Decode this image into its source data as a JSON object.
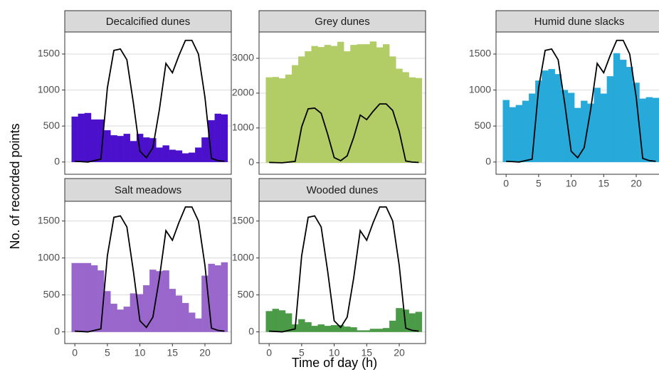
{
  "axis_labels": {
    "x": "Time of day (h)",
    "y": "No. of recorded points"
  },
  "chart_data": [
    {
      "type": "bar",
      "title": "Decalcified dunes",
      "color": "#4a10cc",
      "line_color": "#000000",
      "x": [
        0,
        1,
        2,
        3,
        4,
        5,
        6,
        7,
        8,
        9,
        10,
        11,
        12,
        13,
        14,
        15,
        16,
        17,
        18,
        19,
        20,
        21,
        22,
        23
      ],
      "values": [
        630,
        670,
        680,
        590,
        590,
        440,
        370,
        360,
        390,
        290,
        390,
        340,
        330,
        200,
        230,
        170,
        160,
        120,
        130,
        200,
        340,
        580,
        670,
        660
      ],
      "line_values": [
        10,
        5,
        0,
        20,
        40,
        1030,
        1550,
        1570,
        1420,
        820,
        150,
        60,
        200,
        730,
        1370,
        1240,
        1480,
        1690,
        1690,
        1500,
        900,
        50,
        20,
        10
      ],
      "xlim": [
        -1.55,
        24.05
      ],
      "xticks": [
        0,
        5,
        10,
        15,
        20
      ],
      "ylim": [
        -170,
        1806
      ],
      "yticks": [
        0,
        500,
        1000,
        1500
      ],
      "grid": true,
      "x_axis": false
    },
    {
      "type": "bar",
      "title": "Grey dunes",
      "color": "#b2cc66",
      "line_color": "#000000",
      "x": [
        0,
        1,
        2,
        3,
        4,
        5,
        6,
        7,
        8,
        9,
        10,
        11,
        12,
        13,
        14,
        15,
        16,
        17,
        18,
        19,
        20,
        21,
        22,
        23
      ],
      "values": [
        2450,
        2460,
        2420,
        2530,
        2800,
        3050,
        3200,
        3350,
        3320,
        3380,
        3350,
        3470,
        3200,
        3380,
        3400,
        3400,
        3480,
        3310,
        3400,
        3050,
        2700,
        2600,
        2450,
        2430
      ],
      "line_values": [
        10,
        5,
        0,
        20,
        40,
        1030,
        1550,
        1570,
        1420,
        820,
        150,
        60,
        200,
        730,
        1370,
        1240,
        1480,
        1690,
        1690,
        1500,
        900,
        50,
        20,
        10
      ],
      "xlim": [
        -1.55,
        24.05
      ],
      "xticks": [
        0,
        5,
        10,
        15,
        20
      ],
      "ylim": [
        -330,
        3755
      ],
      "yticks": [
        0,
        1000,
        2000,
        3000
      ],
      "grid": true,
      "x_axis": false
    },
    {
      "type": "bar",
      "title": "Humid dune slacks",
      "color": "#27a9d9",
      "line_color": "#000000",
      "x": [
        0,
        1,
        2,
        3,
        4,
        5,
        6,
        7,
        8,
        9,
        10,
        11,
        12,
        13,
        14,
        15,
        16,
        17,
        18,
        19,
        20,
        21,
        22,
        23
      ],
      "values": [
        860,
        760,
        790,
        850,
        950,
        1130,
        1270,
        1290,
        1220,
        1000,
        960,
        750,
        850,
        810,
        1030,
        950,
        1190,
        1510,
        1420,
        1320,
        1100,
        880,
        900,
        890
      ],
      "line_values": [
        10,
        5,
        0,
        20,
        40,
        1030,
        1550,
        1570,
        1420,
        820,
        150,
        60,
        200,
        730,
        1370,
        1240,
        1480,
        1690,
        1690,
        1500,
        900,
        50,
        20,
        10
      ],
      "xlim": [
        -1.55,
        24.05
      ],
      "xticks": [
        0,
        5,
        10,
        15,
        20
      ],
      "ylim": [
        -170,
        1806
      ],
      "yticks": [
        0,
        500,
        1000,
        1500
      ],
      "grid": true,
      "x_axis": true
    },
    {
      "type": "bar",
      "title": "Salt meadows",
      "color": "#9966cc",
      "line_color": "#000000",
      "x": [
        0,
        1,
        2,
        3,
        4,
        5,
        6,
        7,
        8,
        9,
        10,
        11,
        12,
        13,
        14,
        15,
        16,
        17,
        18,
        19,
        20,
        21,
        22,
        23
      ],
      "values": [
        930,
        930,
        930,
        900,
        830,
        550,
        380,
        300,
        340,
        520,
        510,
        630,
        840,
        820,
        830,
        580,
        490,
        390,
        260,
        180,
        760,
        920,
        900,
        940
      ],
      "line_values": [
        10,
        5,
        0,
        20,
        40,
        1030,
        1550,
        1570,
        1420,
        820,
        150,
        60,
        200,
        730,
        1370,
        1240,
        1480,
        1690,
        1690,
        1500,
        900,
        50,
        20,
        10
      ],
      "xlim": [
        -1.55,
        24.05
      ],
      "xticks": [
        0,
        5,
        10,
        15,
        20
      ],
      "ylim": [
        -158,
        1767
      ],
      "yticks": [
        0,
        500,
        1000,
        1500
      ],
      "grid": true,
      "x_axis": true
    },
    {
      "type": "bar",
      "title": "Wooded dunes",
      "color": "#4a9a47",
      "line_color": "#000000",
      "x": [
        0,
        1,
        2,
        3,
        4,
        5,
        6,
        7,
        8,
        9,
        10,
        11,
        12,
        13,
        14,
        15,
        16,
        17,
        18,
        19,
        20,
        21,
        22,
        23
      ],
      "values": [
        280,
        310,
        290,
        250,
        100,
        170,
        130,
        80,
        100,
        80,
        90,
        90,
        70,
        60,
        20,
        20,
        40,
        40,
        50,
        150,
        320,
        300,
        250,
        270
      ],
      "line_values": [
        10,
        5,
        0,
        20,
        40,
        1030,
        1550,
        1570,
        1420,
        820,
        150,
        60,
        200,
        730,
        1370,
        1240,
        1480,
        1690,
        1690,
        1500,
        900,
        50,
        20,
        10
      ],
      "xlim": [
        -1.55,
        24.05
      ],
      "xticks": [
        0,
        5,
        10,
        15,
        20
      ],
      "ylim": [
        -158,
        1767
      ],
      "yticks": [
        0,
        500,
        1000,
        1500
      ],
      "grid": true,
      "x_axis": true
    }
  ]
}
